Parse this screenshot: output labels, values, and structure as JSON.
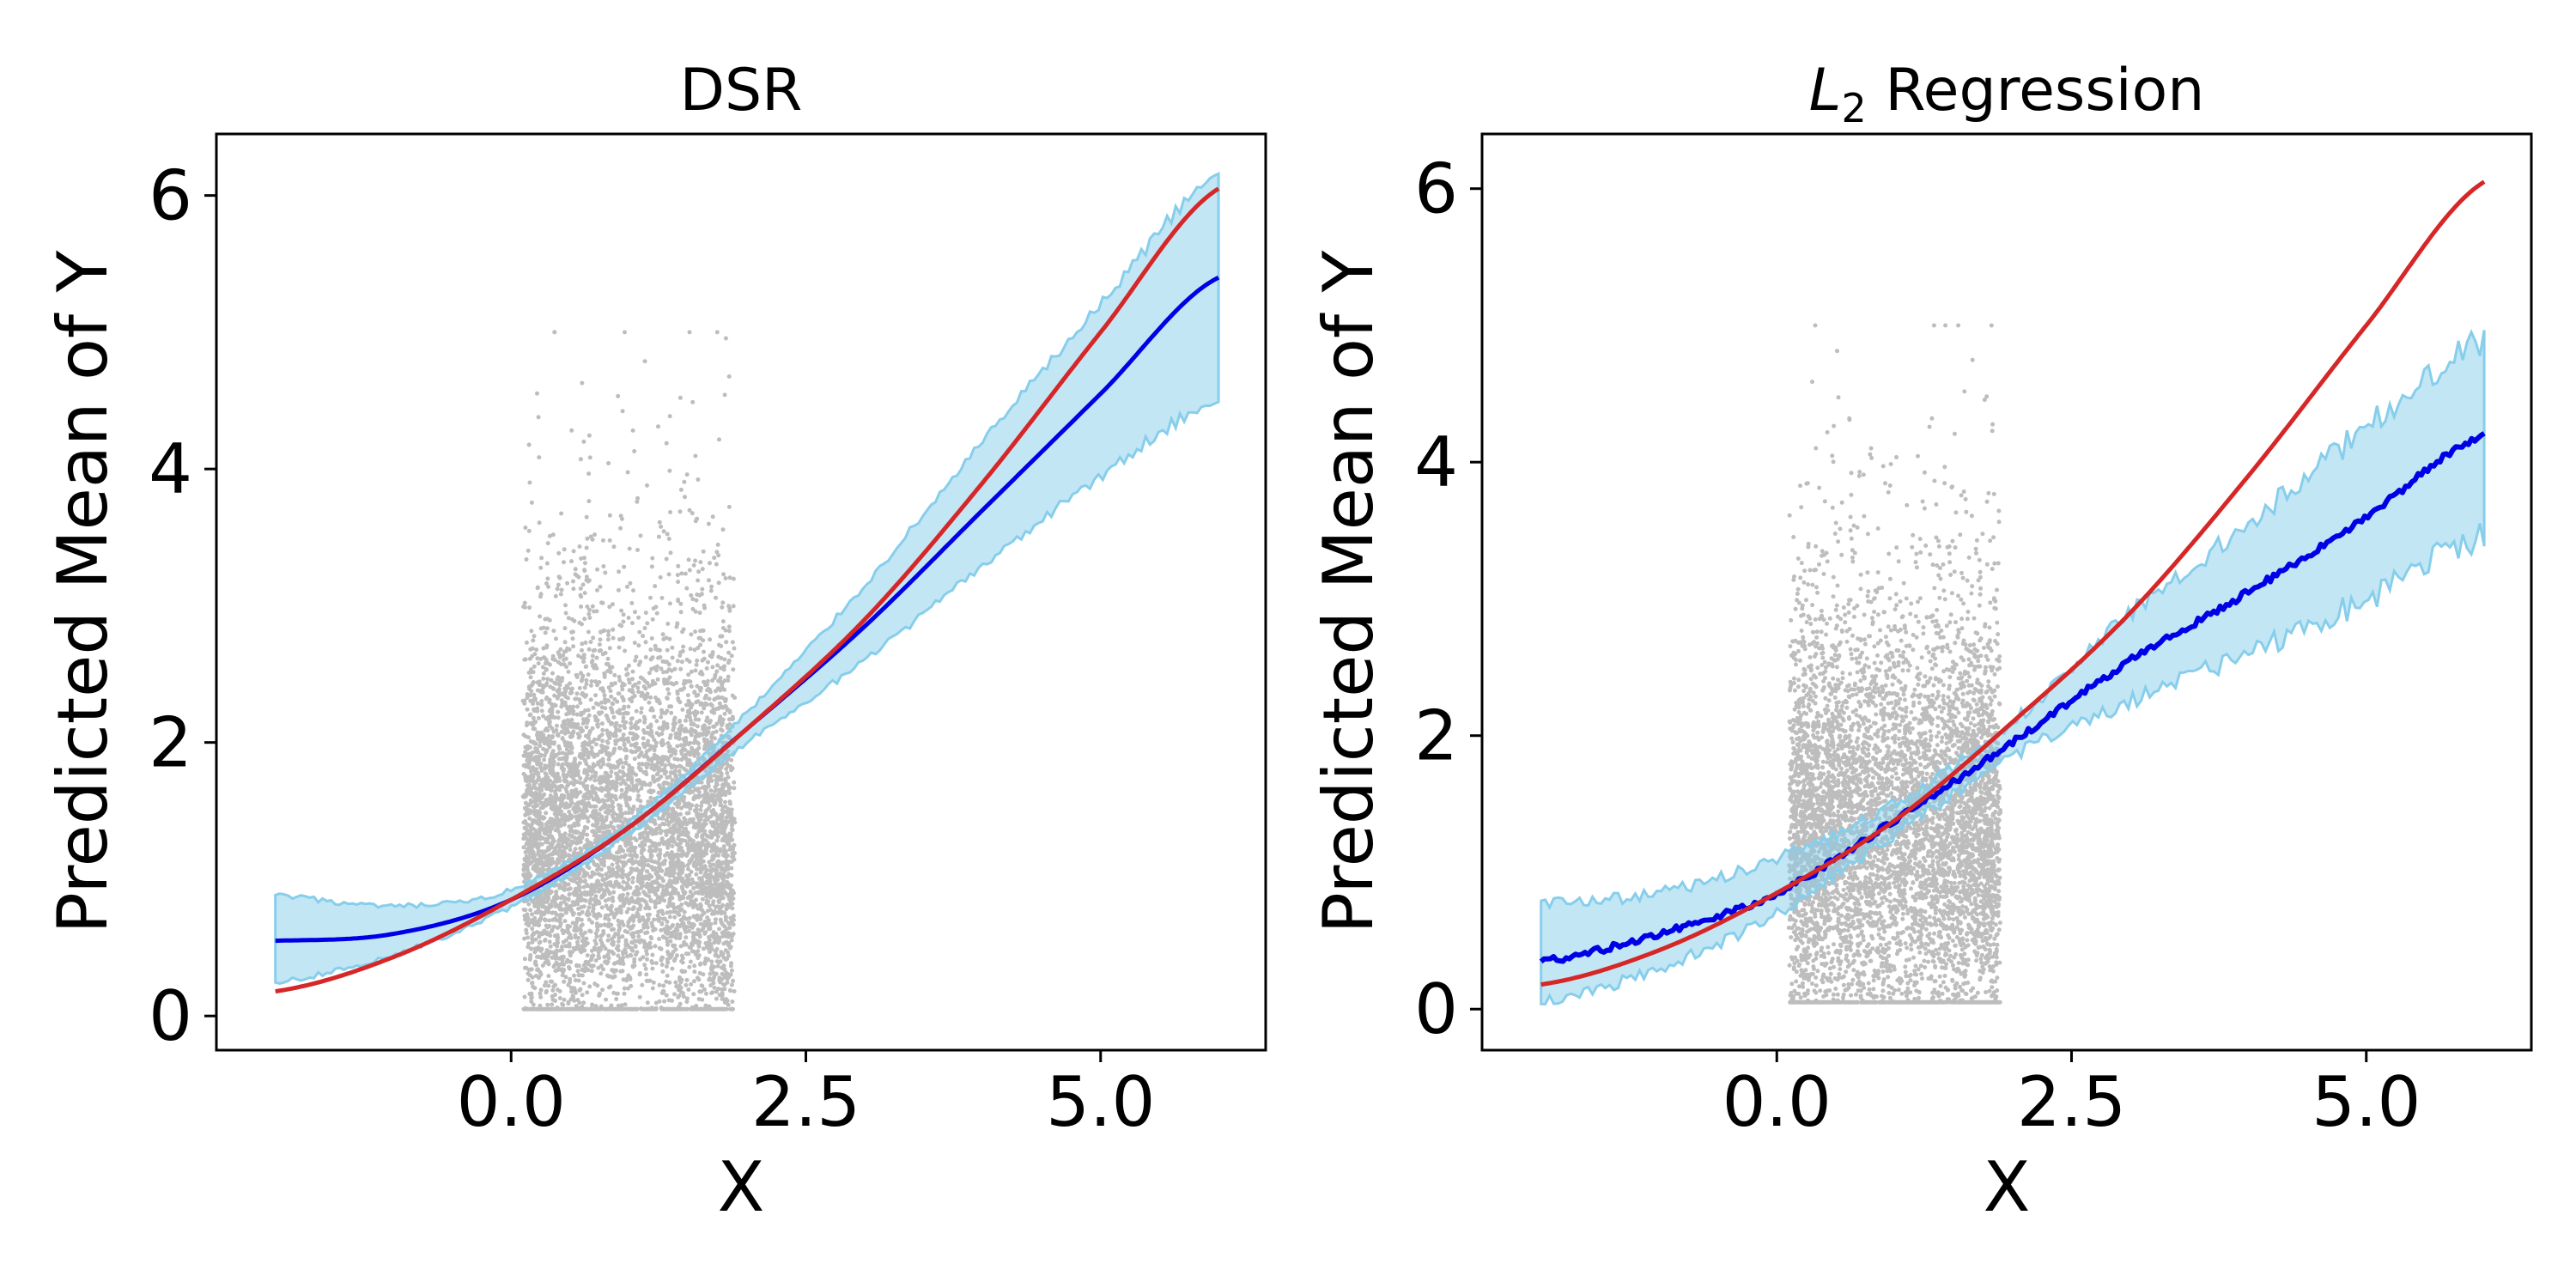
{
  "chart_data": [
    {
      "type": "line",
      "title": "DSR",
      "xlabel": "X",
      "ylabel": "Predicted Mean of Y",
      "xlim": [
        -2.5,
        6.4
      ],
      "ylim": [
        -0.25,
        6.45
      ],
      "xticks": [
        0.0,
        2.5,
        5.0
      ],
      "xtick_labels": [
        "0.0",
        "2.5",
        "5.0"
      ],
      "yticks": [
        0,
        2,
        4,
        6
      ],
      "ytick_labels": [
        "0",
        "2",
        "4",
        "6"
      ],
      "grid": false,
      "colors": {
        "true_mean": "#d62728",
        "predicted_mean": "#0000e6",
        "band": "#87ceeb",
        "scatter": "#bdbdbd"
      },
      "scatter": {
        "x_range": [
          0.1,
          1.9
        ],
        "y_range": [
          0.05,
          5.0
        ],
        "approx_points": 6000
      },
      "series": [
        {
          "role": "true_mean",
          "x": [
            -2.0,
            -1.0,
            0.0,
            1.0,
            2.0,
            3.0,
            4.0,
            5.0,
            6.0
          ],
          "y": [
            0.18,
            0.43,
            0.85,
            1.38,
            2.1,
            2.9,
            3.9,
            5.0,
            6.05
          ]
        },
        {
          "role": "predicted_mean",
          "x": [
            -2.0,
            -1.0,
            0.0,
            1.0,
            2.0,
            3.0,
            4.0,
            5.0,
            6.0
          ],
          "y": [
            0.55,
            0.6,
            0.85,
            1.38,
            2.1,
            2.85,
            3.7,
            4.55,
            5.4
          ]
        },
        {
          "role": "band",
          "x": [
            -2.0,
            -1.0,
            0.0,
            1.0,
            2.0,
            3.0,
            4.0,
            5.0,
            6.0
          ],
          "lower": [
            0.25,
            0.45,
            0.8,
            1.33,
            2.0,
            2.6,
            3.3,
            3.95,
            4.5
          ],
          "upper": [
            0.88,
            0.8,
            0.92,
            1.42,
            2.22,
            3.15,
            4.2,
            5.2,
            6.15
          ]
        }
      ]
    },
    {
      "type": "line",
      "title": "Regression",
      "title_prefix": "L",
      "title_subscript": "2",
      "xlabel": "X",
      "ylabel": "Predicted Mean of Y",
      "xlim": [
        -2.5,
        6.4
      ],
      "ylim": [
        -0.3,
        6.4
      ],
      "xticks": [
        0.0,
        2.5,
        5.0
      ],
      "xtick_labels": [
        "0.0",
        "2.5",
        "5.0"
      ],
      "yticks": [
        0,
        2,
        4,
        6
      ],
      "ytick_labels": [
        "0",
        "2",
        "4",
        "6"
      ],
      "grid": false,
      "colors": {
        "true_mean": "#d62728",
        "predicted_mean": "#0000e6",
        "band": "#87ceeb",
        "scatter": "#bdbdbd"
      },
      "scatter": {
        "x_range": [
          0.1,
          1.9
        ],
        "y_range": [
          0.05,
          5.0
        ],
        "approx_points": 6000
      },
      "series": [
        {
          "role": "true_mean",
          "x": [
            -2.0,
            -1.0,
            0.0,
            1.0,
            2.0,
            3.0,
            4.0,
            5.0,
            6.0
          ],
          "y": [
            0.18,
            0.43,
            0.85,
            1.38,
            2.1,
            2.9,
            3.9,
            5.0,
            6.05
          ]
        },
        {
          "role": "predicted_mean",
          "x": [
            -2.0,
            -1.0,
            0.0,
            1.0,
            2.0,
            3.0,
            4.0,
            5.0,
            6.0
          ],
          "y": [
            0.35,
            0.55,
            0.85,
            1.38,
            1.95,
            2.55,
            3.05,
            3.6,
            4.2
          ]
        },
        {
          "role": "band",
          "x": [
            -2.0,
            -1.0,
            0.0,
            1.0,
            2.0,
            3.0,
            4.0,
            5.0,
            6.0
          ],
          "lower": [
            0.05,
            0.3,
            0.7,
            1.28,
            1.85,
            2.25,
            2.6,
            3.0,
            3.45
          ],
          "upper": [
            0.78,
            0.85,
            1.1,
            1.5,
            2.1,
            2.9,
            3.55,
            4.25,
            4.9
          ]
        }
      ]
    }
  ]
}
